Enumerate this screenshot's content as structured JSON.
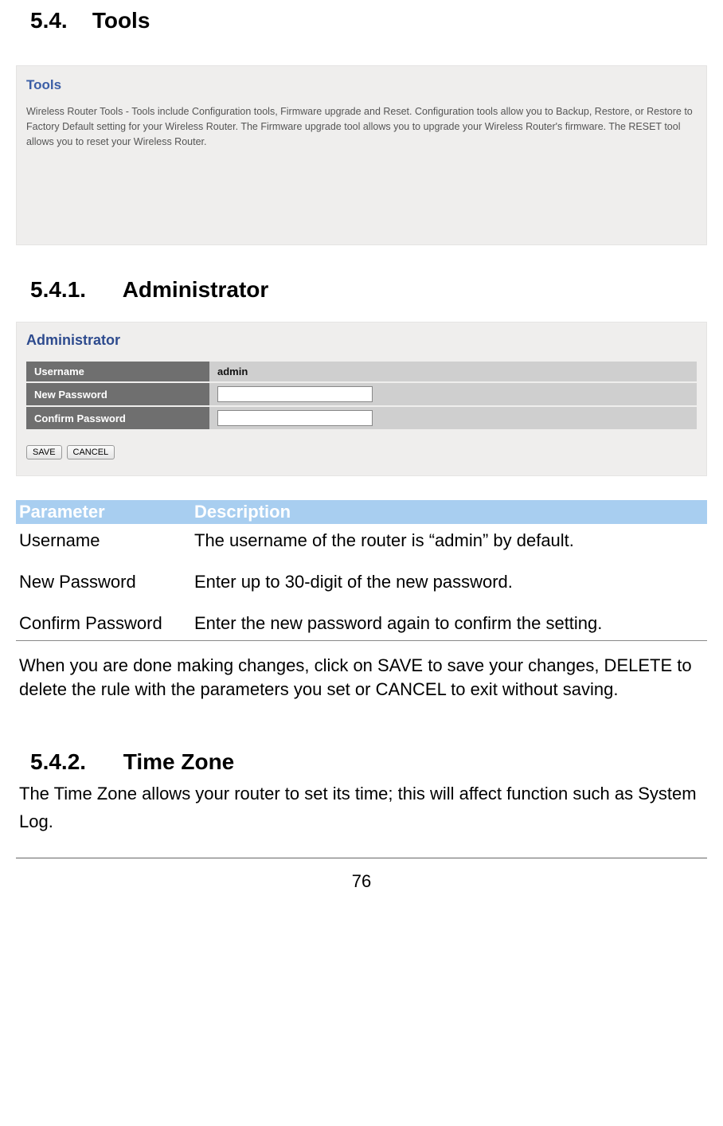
{
  "headings": {
    "section_5_4_num": "5.4.",
    "section_5_4_title": "Tools",
    "section_5_4_1_num": "5.4.1.",
    "section_5_4_1_title": "Administrator",
    "section_5_4_2_num": "5.4.2.",
    "section_5_4_2_title": "Time Zone"
  },
  "tools_panel": {
    "title": "Tools",
    "description": "Wireless Router Tools - Tools include Configuration tools, Firmware upgrade and Reset. Configuration tools allow you to Backup, Restore, or Restore to Factory Default setting for your Wireless Router. The Firmware upgrade tool allows you to upgrade your Wireless Router's firmware. The RESET tool allows you to reset your Wireless Router."
  },
  "admin_panel": {
    "title": "Administrator",
    "rows": {
      "username_label": "Username",
      "username_value": "admin",
      "new_password_label": "New Password",
      "confirm_password_label": "Confirm Password"
    },
    "buttons": {
      "save": "SAVE",
      "cancel": "CANCEL"
    }
  },
  "param_table": {
    "header_param": "Parameter",
    "header_desc": "Description",
    "rows": [
      {
        "param": "Username",
        "desc": "The username of the router is “admin” by default."
      },
      {
        "param": "New Password",
        "desc": "Enter up to 30-digit of the new password."
      },
      {
        "param": "Confirm Password",
        "desc": "Enter the new password again to confirm the setting."
      }
    ]
  },
  "note": "When you are done making changes, click on SAVE to save your changes, DELETE to delete the rule with the parameters you set or CANCEL to exit without saving.",
  "timezone_desc": "The Time Zone allows your router to set its time; this will affect function such as System Log.",
  "page_number": "76",
  "colors": {
    "panel_bg": "#efeeed",
    "tools_title_color": "#3b5ea6",
    "admin_title_color": "#2e4b8e",
    "row_label_bg": "#6f6f6f",
    "row_value_bg": "#cfcfcf",
    "param_header_bg": "#a8cef0",
    "param_header_color": "#ffffff"
  }
}
